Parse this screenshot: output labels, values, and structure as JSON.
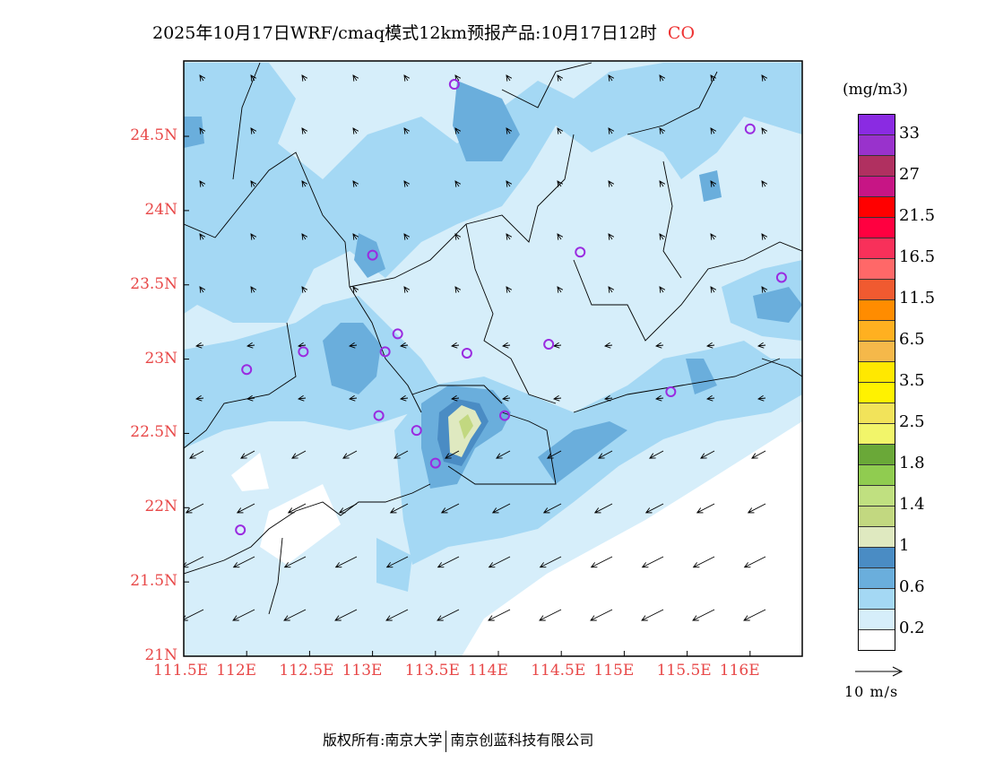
{
  "title": {
    "main": "2025年10月17日WRF/cmaq模式12km预报产品:10月17日12时",
    "species": "CO"
  },
  "axes": {
    "lon_ticks": [
      "111.5E",
      "112E",
      "112.5E",
      "113E",
      "113.5E",
      "114E",
      "114.5E",
      "115E",
      "115.5E",
      "116E"
    ],
    "lon_values": [
      111.5,
      112,
      112.5,
      113,
      113.5,
      114,
      114.5,
      115,
      115.5,
      116
    ],
    "lat_ticks": [
      "24.5N",
      "24N",
      "23.5N",
      "23N",
      "22.5N",
      "22N",
      "21.5N",
      "21N"
    ],
    "lat_values": [
      24.5,
      24,
      23.5,
      23,
      22.5,
      22,
      21.5,
      21
    ],
    "lon_range": [
      111.5,
      116.41
    ],
    "lat_range": [
      21,
      24.99
    ]
  },
  "colorbar": {
    "unit": "(mg/m3)",
    "colors": [
      "#8a2be2",
      "#9932cc",
      "#b03060",
      "#c71585",
      "#ff0000",
      "#ff0040",
      "#f8305a",
      "#ff6868",
      "#f05a30",
      "#ff8c00",
      "#ffb020",
      "#f5b84a",
      "#ffe800",
      "#fff200",
      "#f2e35a",
      "#f2f56a",
      "#6aa838",
      "#90cc50",
      "#c0e080",
      "#c2d880",
      "#dfe9c0",
      "#4a8cc4",
      "#6aaedc",
      "#a4d8f4",
      "#d6eefa",
      "#ffffff"
    ],
    "labels": [
      "33",
      "27",
      "21.5",
      "16.5",
      "11.5",
      "6.5",
      "3.5",
      "2.5",
      "1.8",
      "1.4",
      "1",
      "0.6",
      "0.2"
    ]
  },
  "wind_reference": "10 m/s",
  "footer": {
    "left": "版权所有:南京大学",
    "right": "南京创蓝科技有限公司"
  }
}
